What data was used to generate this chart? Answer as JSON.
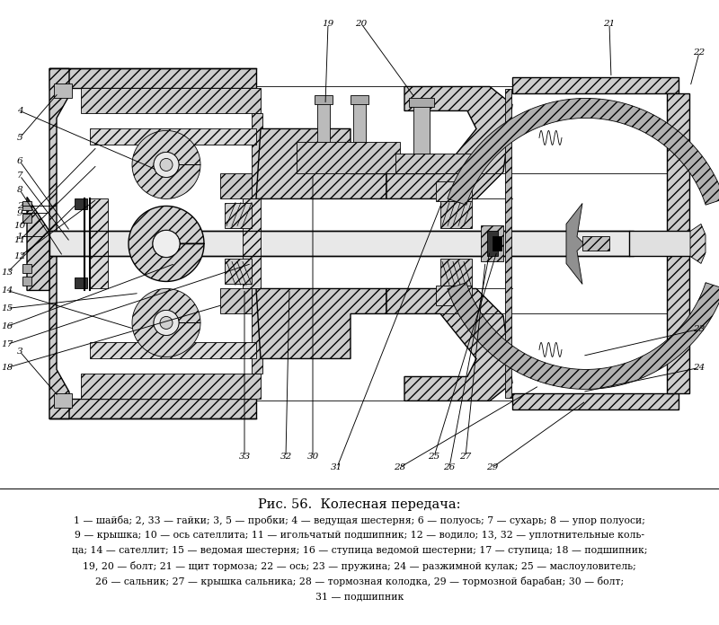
{
  "figure_width": 8.0,
  "figure_height": 6.96,
  "background_color": "#ffffff",
  "title_line": "Рис. 56.  Колесная передача:",
  "caption_lines": [
    "1 — шайба; 2, 33 — гайки; 3, 5 — пробки; 4 — ведущая шестерня; 6 — полуось; 7 — сухарь; 8 — упор полуоси;",
    "9 — крышка; 10 — ось сателлита; 11 — игольчатый подшипник; 12 — водило; 13, 32 — уплотнительные коль-",
    "ца; 14 — сателлит; 15 — ведомая шестерня; 16 — ступица ведомой шестерни; 17 — ступица; 18 — подшипник;",
    "19, 20 — болт; 21 — щит тормоза; 22 — ось; 23 — пружина; 24 — разжимной кулак; 25 — маслоуловитель;",
    "26 — сальник; 27 — крышка сальника; 28 — тормозная колодка, 29 — тормозной барабан; 30 — болт;",
    "31 — подшипник"
  ]
}
